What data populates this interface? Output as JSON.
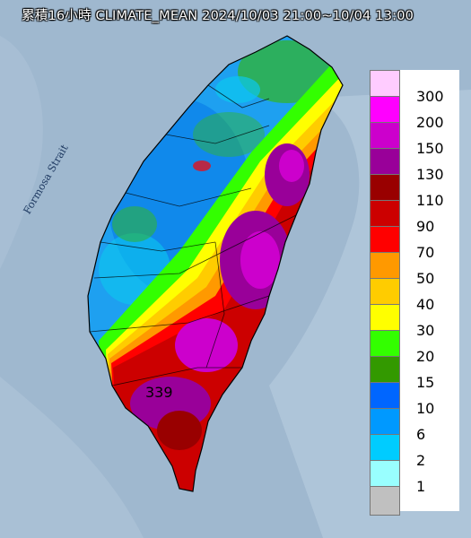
{
  "title": "累積16小時 CLIMATE_MEAN 2024/10/03 21:00~10/04 13:00",
  "strait_label": "Formosa Strait",
  "peak_value": "339",
  "legend": [
    {
      "label": "300",
      "color": "#ffccff"
    },
    {
      "label": "200",
      "color": "#ff00ff"
    },
    {
      "label": "150",
      "color": "#cc00cc"
    },
    {
      "label": "130",
      "color": "#990099"
    },
    {
      "label": "110",
      "color": "#990000"
    },
    {
      "label": "90",
      "color": "#cc0000"
    },
    {
      "label": "70",
      "color": "#ff0000"
    },
    {
      "label": "50",
      "color": "#ff9900"
    },
    {
      "label": "40",
      "color": "#ffcc00"
    },
    {
      "label": "30",
      "color": "#ffff00"
    },
    {
      "label": "20",
      "color": "#33ff00"
    },
    {
      "label": "15",
      "color": "#339900"
    },
    {
      "label": "10",
      "color": "#0066ff"
    },
    {
      "label": "6",
      "color": "#0099ff"
    },
    {
      "label": "2",
      "color": "#00ccff"
    },
    {
      "label": "1",
      "color": "#99ffff"
    },
    {
      "label": "",
      "color": "#c0c0c0"
    }
  ]
}
